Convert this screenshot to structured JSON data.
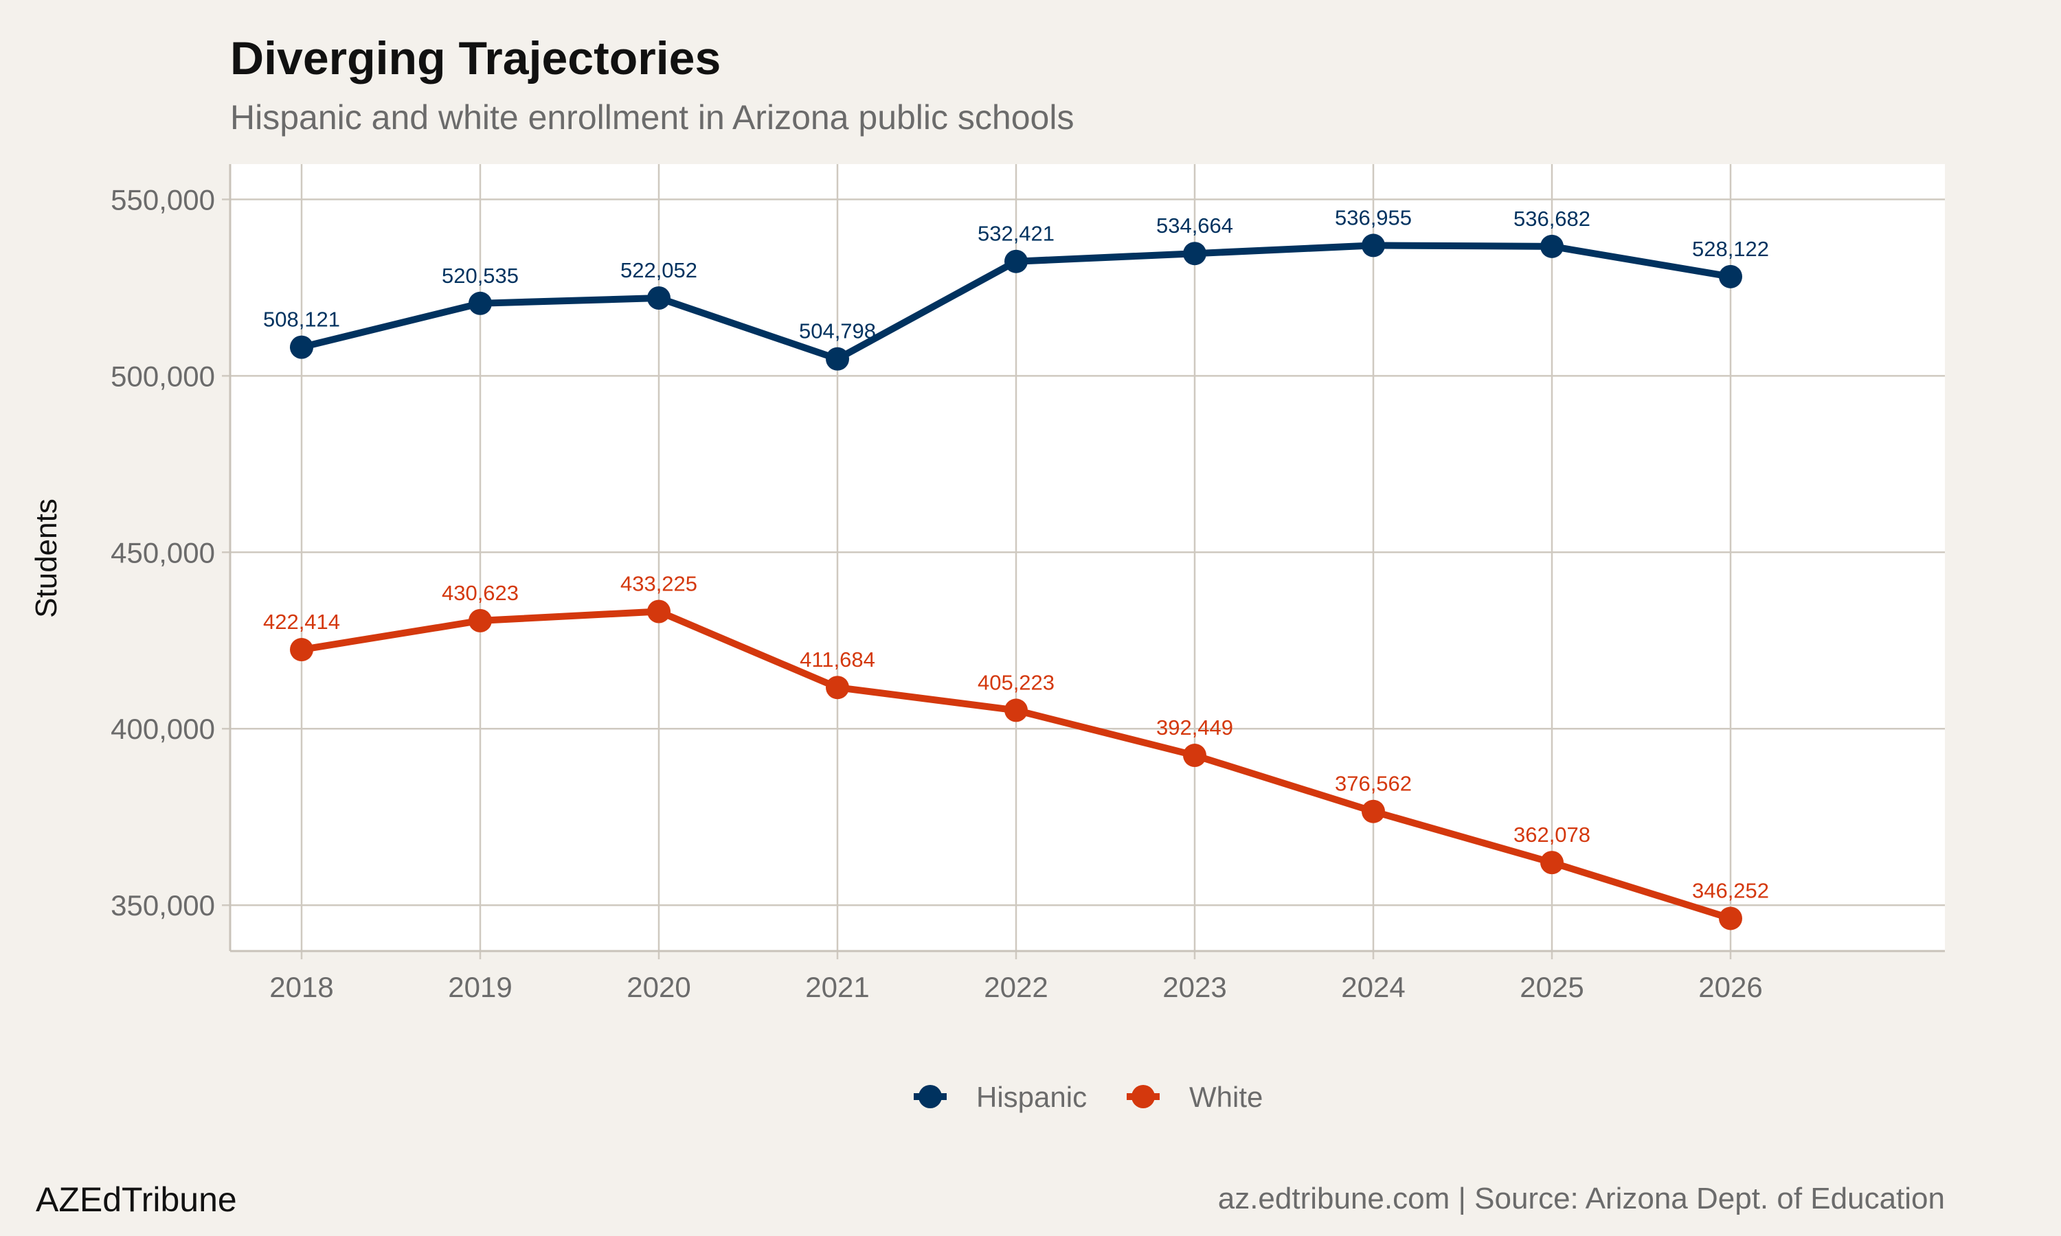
{
  "chart_data": {
    "type": "line",
    "title": "Diverging Trajectories",
    "subtitle": "Hispanic and white enrollment in Arizona public schools",
    "xlabel": "",
    "ylabel": "Students",
    "x": [
      2018,
      2019,
      2020,
      2021,
      2022,
      2023,
      2024,
      2025,
      2026
    ],
    "x_tick_labels": [
      "2018",
      "2019",
      "2020",
      "2021",
      "2022",
      "2023",
      "2024",
      "2025",
      "2026"
    ],
    "y_ticks": [
      350000,
      400000,
      450000,
      500000,
      550000
    ],
    "y_tick_labels": [
      "350,000",
      "400,000",
      "450,000",
      "500,000",
      "550,000"
    ],
    "xlim": [
      2017.6,
      2027.2
    ],
    "ylim": [
      337000,
      560000
    ],
    "grid": true,
    "legend_position": "bottom",
    "series": [
      {
        "name": "Hispanic",
        "color": "#00325f",
        "values": [
          508121,
          520535,
          522052,
          504798,
          532421,
          534664,
          536955,
          536682,
          528122
        ],
        "labels": [
          "508,121",
          "520,535",
          "522,052",
          "504,798",
          "532,421",
          "534,664",
          "536,955",
          "536,682",
          "528,122"
        ]
      },
      {
        "name": "White",
        "color": "#d4380d",
        "values": [
          422414,
          430623,
          433225,
          411684,
          405223,
          392449,
          376562,
          362078,
          346252
        ],
        "labels": [
          "422,414",
          "430,623",
          "433,225",
          "411,684",
          "405,223",
          "392,449",
          "376,562",
          "362,078",
          "346,252"
        ]
      }
    ]
  },
  "footer": {
    "brand": "AZEdTribune",
    "source": "az.edtribune.com | Source: Arizona Dept. of Education"
  },
  "colors": {
    "background": "#f4f1ec",
    "panel": "#ffffff",
    "grid": "#cfc9c0"
  }
}
